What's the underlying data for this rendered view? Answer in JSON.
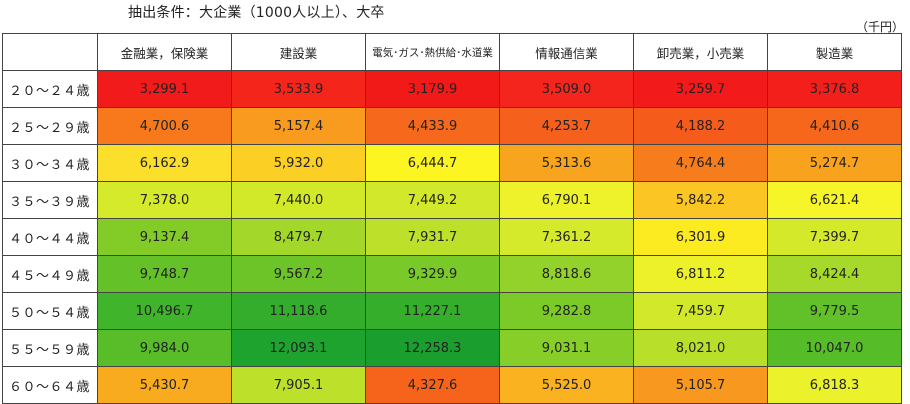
{
  "condition": "抽出条件：大企業（1000人以上）、大卒",
  "unit": "（千円）",
  "columns": [
    {
      "label": "金融業，保険業",
      "small": false
    },
    {
      "label": "建設業",
      "small": false
    },
    {
      "label": "電気･ガス･熱供給･水道業",
      "small": true
    },
    {
      "label": "情報通信業",
      "small": false
    },
    {
      "label": "卸売業，小売業",
      "small": false
    },
    {
      "label": "製造業",
      "small": false
    }
  ],
  "rows": [
    {
      "label": "２０～２４歳",
      "cells": [
        {
          "v": "3,299.1",
          "c": "#f21b1b"
        },
        {
          "v": "3,533.9",
          "c": "#f4261c"
        },
        {
          "v": "3,179.9",
          "c": "#f21919"
        },
        {
          "v": "3,509.0",
          "c": "#f3251c"
        },
        {
          "v": "3,259.7",
          "c": "#f21a1a"
        },
        {
          "v": "3,376.8",
          "c": "#f31f1b"
        }
      ]
    },
    {
      "label": "２５～２９歳",
      "cells": [
        {
          "v": "4,700.6",
          "c": "#f7791c"
        },
        {
          "v": "5,157.4",
          "c": "#f99b1e"
        },
        {
          "v": "4,433.9",
          "c": "#f6691c"
        },
        {
          "v": "4,253.7",
          "c": "#f5601c"
        },
        {
          "v": "4,188.2",
          "c": "#f55c1c"
        },
        {
          "v": "4,410.6",
          "c": "#f6671c"
        }
      ]
    },
    {
      "label": "３０～３４歳",
      "cells": [
        {
          "v": "6,162.9",
          "c": "#fbdf2a"
        },
        {
          "v": "5,932.0",
          "c": "#fbcf23"
        },
        {
          "v": "6,444.7",
          "c": "#fdf521"
        },
        {
          "v": "5,313.6",
          "c": "#f9a41e"
        },
        {
          "v": "4,764.4",
          "c": "#f77d1c"
        },
        {
          "v": "5,274.7",
          "c": "#f9a21e"
        }
      ]
    },
    {
      "label": "３５～３９歳",
      "cells": [
        {
          "v": "7,378.0",
          "c": "#d4ea2a"
        },
        {
          "v": "7,440.0",
          "c": "#d2e92a"
        },
        {
          "v": "7,449.2",
          "c": "#d1e92a"
        },
        {
          "v": "6,790.1",
          "c": "#eef22a"
        },
        {
          "v": "5,842.2",
          "c": "#fbc623"
        },
        {
          "v": "6,621.4",
          "c": "#f6f52a"
        }
      ]
    },
    {
      "label": "４０～４４歳",
      "cells": [
        {
          "v": "9,137.4",
          "c": "#83cc28"
        },
        {
          "v": "8,479.7",
          "c": "#a3d82a"
        },
        {
          "v": "7,931.7",
          "c": "#bde02a"
        },
        {
          "v": "7,361.2",
          "c": "#d5ea2a"
        },
        {
          "v": "6,301.9",
          "c": "#fdeb21"
        },
        {
          "v": "7,399.7",
          "c": "#d4e92a"
        }
      ]
    },
    {
      "label": "４５～４９歳",
      "cells": [
        {
          "v": "9,748.7",
          "c": "#64c128"
        },
        {
          "v": "9,567.2",
          "c": "#6cc428"
        },
        {
          "v": "9,329.9",
          "c": "#79c928"
        },
        {
          "v": "8,818.6",
          "c": "#93d22a"
        },
        {
          "v": "6,811.2",
          "c": "#ecf12a"
        },
        {
          "v": "8,424.4",
          "c": "#a7d92a"
        }
      ]
    },
    {
      "label": "５０～５４歳",
      "cells": [
        {
          "v": "10,496.7",
          "c": "#40b42a"
        },
        {
          "v": "11,118.6",
          "c": "#33ad2b"
        },
        {
          "v": "11,227.1",
          "c": "#35ae2b"
        },
        {
          "v": "9,282.8",
          "c": "#7cca28"
        },
        {
          "v": "7,459.7",
          "c": "#d1e92a"
        },
        {
          "v": "9,779.5",
          "c": "#62c028"
        }
      ]
    },
    {
      "label": "５５～５９歳",
      "cells": [
        {
          "v": "9,984.0",
          "c": "#58bd28"
        },
        {
          "v": "12,093.1",
          "c": "#1ea32e"
        },
        {
          "v": "12,258.3",
          "c": "#1a9f2e"
        },
        {
          "v": "9,031.1",
          "c": "#88ce28"
        },
        {
          "v": "8,021.0",
          "c": "#b8df2a"
        },
        {
          "v": "10,047.0",
          "c": "#56bc28"
        }
      ]
    },
    {
      "label": "６０～６４歳",
      "cells": [
        {
          "v": "5,430.7",
          "c": "#f9ab1f"
        },
        {
          "v": "7,905.1",
          "c": "#bde02a"
        },
        {
          "v": "4,327.6",
          "c": "#f6641c"
        },
        {
          "v": "5,525.0",
          "c": "#fab220"
        },
        {
          "v": "5,105.7",
          "c": "#f9981e"
        },
        {
          "v": "6,818.3",
          "c": "#ebf12a"
        }
      ]
    }
  ]
}
